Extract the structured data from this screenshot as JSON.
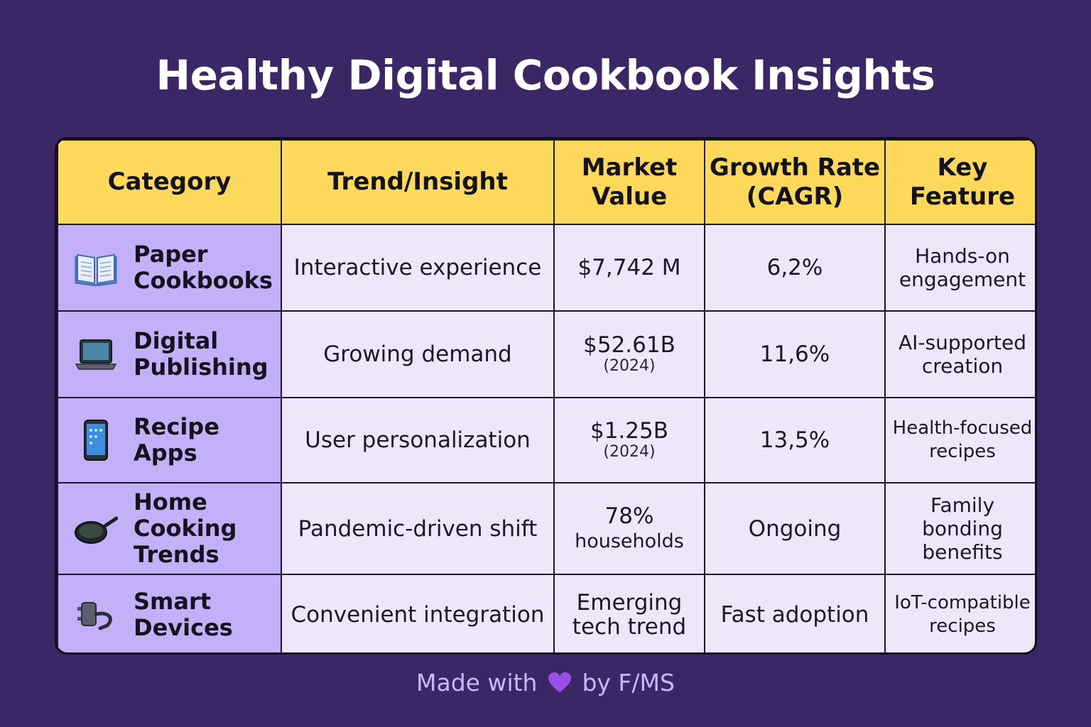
{
  "title": "Healthy Digital Cookbook Insights",
  "footer": {
    "prefix": "Made with",
    "suffix": "by F/MS",
    "heart_icon": "purple-heart-icon",
    "heart_color": "#9b4ee8"
  },
  "colors": {
    "background": "#3b2666",
    "header": "#fcd95a",
    "category_cell": "#c4b0f8",
    "body_cell": "#efe6fc"
  },
  "chart_data": {
    "type": "table",
    "title": "Healthy Digital Cookbook Insights",
    "columns": [
      "Category",
      "Trend/Insight",
      "Market Value",
      "Growth Rate (CAGR)",
      "Key Feature"
    ],
    "header_lines": [
      [
        "Category"
      ],
      [
        "Trend/Insight"
      ],
      [
        "Market",
        "Value"
      ],
      [
        "Growth Rate",
        "(CAGR)"
      ],
      [
        "Key",
        "Feature"
      ]
    ],
    "rows": [
      {
        "icon": "open-book-icon",
        "category_lines": [
          "Paper",
          "Cookbooks"
        ],
        "trend": "Interactive experience",
        "market_value": "$7,742 M",
        "market_note": "",
        "growth": "6,2%",
        "feature_lines": [
          "Hands-on",
          "engagement"
        ]
      },
      {
        "icon": "laptop-icon",
        "category_lines": [
          "Digital",
          "Publishing"
        ],
        "trend": "Growing demand",
        "market_value": "$52.61B",
        "market_note": "(2024)",
        "growth": "11,6%",
        "feature_lines": [
          "AI-supported",
          "creation"
        ]
      },
      {
        "icon": "smartphone-icon",
        "category_lines": [
          "Recipe",
          "Apps"
        ],
        "trend": "User personalization",
        "market_value": "$1.25B",
        "market_note": "(2024)",
        "growth": "13,5%",
        "feature_lines": [
          "Health-focused",
          "recipes"
        ]
      },
      {
        "icon": "frying-pan-icon",
        "category_lines": [
          "Home",
          "Cooking",
          "Trends"
        ],
        "trend": "Pandemic-driven shift",
        "market_value": "78%",
        "market_note": "households",
        "growth": "Ongoing",
        "feature_lines": [
          "Family",
          "bonding",
          "benefits"
        ]
      },
      {
        "icon": "plug-icon",
        "category_lines": [
          "Smart",
          "Devices"
        ],
        "trend": "Convenient integration",
        "market_value": "Emerging",
        "market_note": "tech trend",
        "growth": "Fast adoption",
        "feature_lines": [
          "IoT-compatible",
          "recipes"
        ]
      }
    ]
  }
}
